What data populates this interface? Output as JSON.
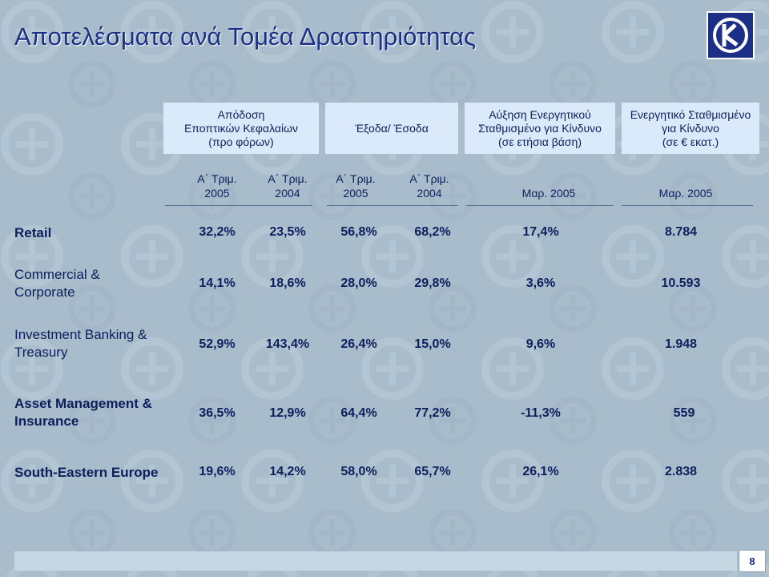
{
  "title": "Αποτελέσματα ανά Τομέα Δραστηριότητας",
  "logo_icon": "alpha-bank-logo-icon",
  "colors": {
    "header_box": "#dbeafa",
    "text": "#0d1f5c",
    "title": "#1b2f86",
    "background": "#a9bccc"
  },
  "headers": [
    "Απόδοση\nΕποπτικών Κεφαλαίων\n(προ φόρων)",
    "Έξοδα/ Έσοδα",
    "Αύξηση Ενεργητικού\nΣταθμισμένο για Κίνδυνο\n(σε ετήσια βάση)",
    "Ενεργητικό Σταθμισμένο\nγια Κίνδυνο\n(σε € εκατ.)"
  ],
  "subheaders": [
    "Α΄ Τριμ.\n2005",
    "Α΄ Τριμ.\n2004",
    "Α΄ Τριμ.\n2005",
    "Α΄ Τριμ.\n2004",
    "Μαρ. 2005",
    "Μαρ. 2005"
  ],
  "rows": [
    {
      "label": "Retail",
      "values": [
        "32,2%",
        "23,5%",
        "56,8%",
        "68,2%",
        "17,4%",
        "8.784"
      ]
    },
    {
      "label": "Commercial &\nCorporate",
      "values": [
        "14,1%",
        "18,6%",
        "28,0%",
        "29,8%",
        "3,6%",
        "10.593"
      ]
    },
    {
      "label": "Investment Banking &\nTreasury",
      "values": [
        "52,9%",
        "143,4%",
        "26,4%",
        "15,0%",
        "9,6%",
        "1.948"
      ]
    },
    {
      "label": "Asset Management &\nInsurance",
      "values": [
        "36,5%",
        "12,9%",
        "64,4%",
        "77,2%",
        "-11,3%",
        "559"
      ]
    },
    {
      "label": "South-Eastern Europe",
      "values": [
        "19,6%",
        "14,2%",
        "58,0%",
        "65,7%",
        "26,1%",
        "2.838"
      ]
    }
  ],
  "page_number": "8"
}
